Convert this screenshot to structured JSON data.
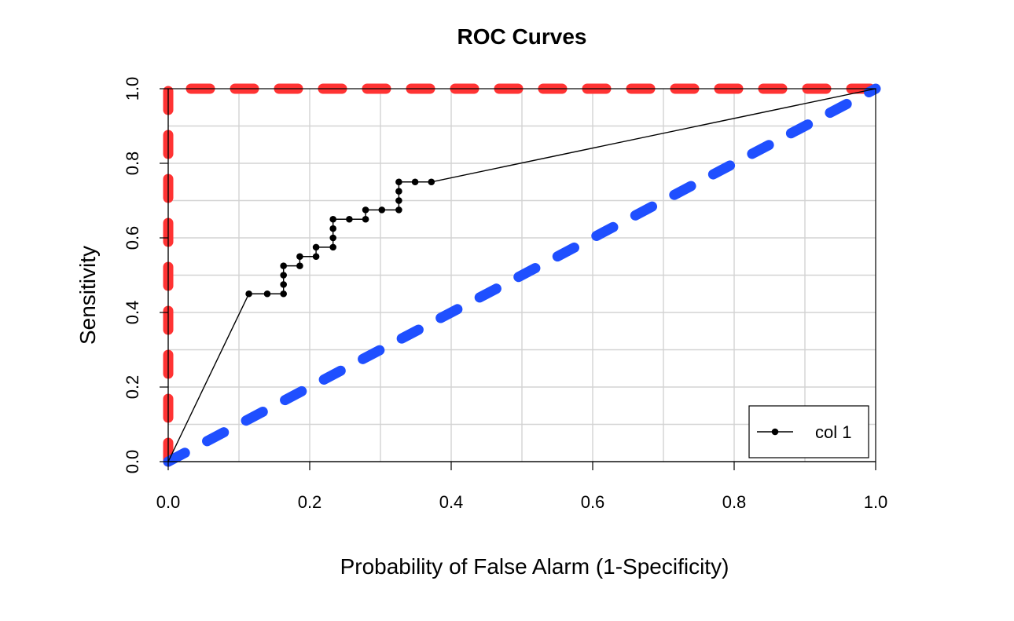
{
  "chart_data": {
    "type": "line",
    "title": "ROC Curves",
    "xlabel": "Probability of False Alarm (1-Specificity)",
    "ylabel": "Sensitivity",
    "xlim": [
      0,
      1
    ],
    "ylim": [
      0,
      1
    ],
    "grid": true,
    "legend": {
      "position": "bottom-right",
      "entries": [
        "col 1"
      ]
    },
    "x_ticks": [
      {
        "value": 0.0,
        "label": "0.0"
      },
      {
        "value": 0.2,
        "label": "0.2"
      },
      {
        "value": 0.4,
        "label": "0.4"
      },
      {
        "value": 0.6,
        "label": "0.6"
      },
      {
        "value": 0.8,
        "label": "0.8"
      },
      {
        "value": 1.0,
        "label": "1.0"
      }
    ],
    "y_ticks": [
      {
        "value": 0.0,
        "label": "0.0"
      },
      {
        "value": 0.2,
        "label": "0.2"
      },
      {
        "value": 0.4,
        "label": "0.4"
      },
      {
        "value": 0.6,
        "label": "0.6"
      },
      {
        "value": 0.8,
        "label": "0.8"
      },
      {
        "value": 1.0,
        "label": "1.0"
      }
    ],
    "grid_values": [
      0.1,
      0.2,
      0.3,
      0.4,
      0.5,
      0.6,
      0.7,
      0.8,
      0.9
    ],
    "series": [
      {
        "name": "col 1",
        "color": "#000000",
        "markers": true,
        "x": [
          0.0,
          0.114,
          0.14,
          0.163,
          0.163,
          0.163,
          0.163,
          0.186,
          0.186,
          0.209,
          0.209,
          0.233,
          0.233,
          0.233,
          0.233,
          0.256,
          0.279,
          0.279,
          0.302,
          0.326,
          0.326,
          0.326,
          0.326,
          0.349,
          0.372,
          1.0
        ],
        "y": [
          0.0,
          0.45,
          0.45,
          0.45,
          0.475,
          0.5,
          0.525,
          0.525,
          0.55,
          0.55,
          0.575,
          0.575,
          0.6,
          0.625,
          0.65,
          0.65,
          0.65,
          0.675,
          0.675,
          0.675,
          0.7,
          0.725,
          0.75,
          0.75,
          0.75,
          1.0
        ]
      }
    ],
    "reference_lines": [
      {
        "kind": "perfect",
        "color": "#ff3333",
        "dashed": true,
        "x": [
          0.0,
          0.0,
          1.0
        ],
        "y": [
          0.0,
          1.0,
          1.0
        ]
      },
      {
        "kind": "chance",
        "color": "#1f4fff",
        "dashed": true,
        "x": [
          0.0,
          1.0
        ],
        "y": [
          0.0,
          1.0
        ]
      }
    ]
  }
}
